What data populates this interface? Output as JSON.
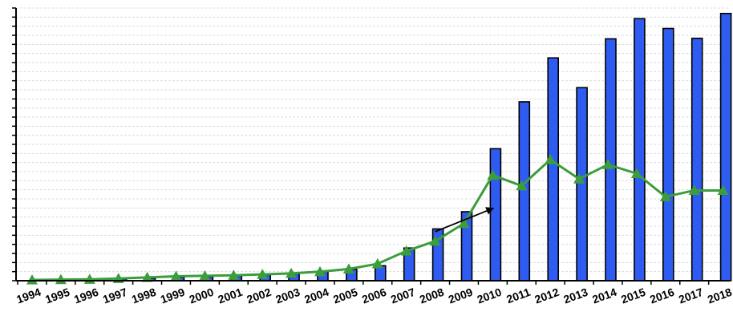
{
  "chart_data": {
    "type": "bar",
    "title": "",
    "xlabel": "",
    "ylabel": "",
    "grid": true,
    "y_tick_labels_visible": false,
    "categories": [
      "1994",
      "1995",
      "1996",
      "1997",
      "1998",
      "1999",
      "2000",
      "2001",
      "2002",
      "2003",
      "2004",
      "2005",
      "2006",
      "2007",
      "2008",
      "2009",
      "2010",
      "2011",
      "2012",
      "2013",
      "2014",
      "2015",
      "2016",
      "2017",
      "2018"
    ],
    "ylim": [
      0,
      100
    ],
    "series": [
      {
        "type": "bar",
        "color": "#2f5cf0",
        "values": [
          0.2,
          0.3,
          0.4,
          0.6,
          0.9,
          1.3,
          1.5,
          1.8,
          2.2,
          2.7,
          3.3,
          4.2,
          5.5,
          12.0,
          19.0,
          25.3,
          48.4,
          65.6,
          81.7,
          70.8,
          88.7,
          96.1,
          92.5,
          88.9,
          98.0
        ]
      },
      {
        "type": "line",
        "color": "#3b9d3b",
        "marker": "triangle",
        "values": [
          0.3,
          0.4,
          0.5,
          0.8,
          1.2,
          1.6,
          1.8,
          2.0,
          2.3,
          2.7,
          3.3,
          4.3,
          6.2,
          10.9,
          14.5,
          21.0,
          38.7,
          34.8,
          44.4,
          37.3,
          42.6,
          39.3,
          30.8,
          33.1,
          33.1
        ]
      }
    ],
    "annotation": {
      "type": "arrow",
      "from": [
        "2008",
        18.0
      ],
      "to": [
        "2010",
        26.5
      ]
    }
  }
}
